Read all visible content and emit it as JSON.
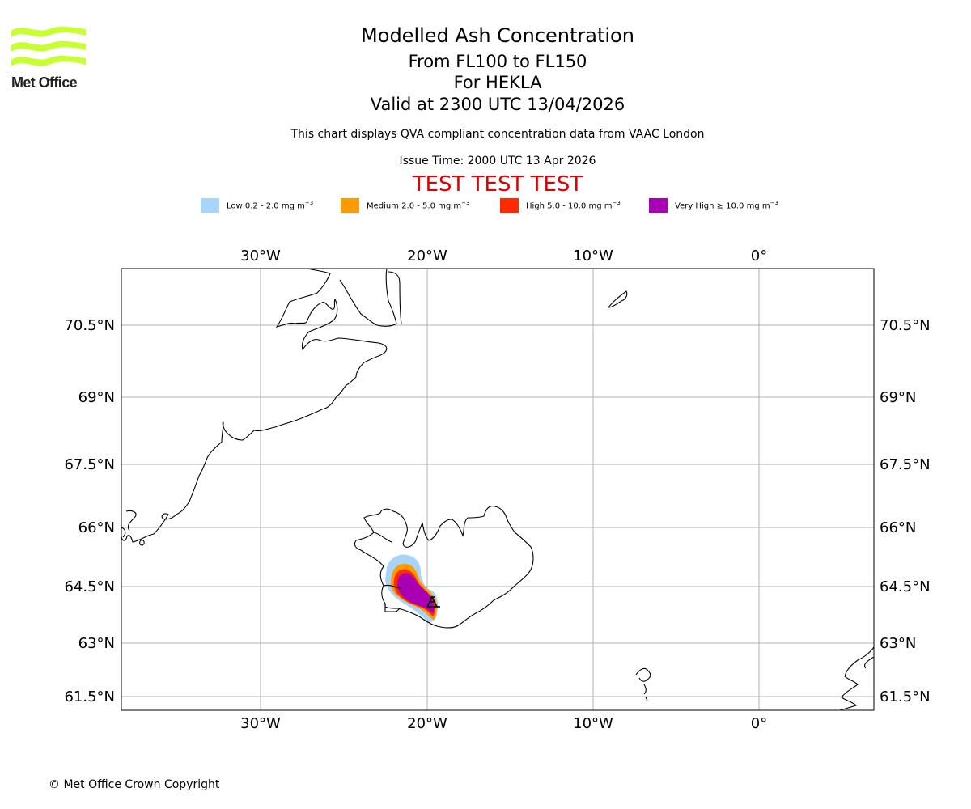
{
  "logo": {
    "text": "Met Office"
  },
  "title": {
    "line1": "Modelled Ash Concentration",
    "line2": "From FL100 to FL150",
    "line3": "For HEKLA",
    "line4": "Valid at 2300 UTC 13/04/2026"
  },
  "subtitle": "This chart displays QVA compliant concentration data from VAAC London",
  "issue_time": "Issue Time: 2000 UTC 13 Apr 2026",
  "test_banner": "TEST TEST TEST",
  "legend": [
    {
      "label": "Low 0.2 - 2.0 mg m",
      "unit_exp": "−3",
      "color": "#a6d4fa"
    },
    {
      "label": "Medium 2.0 - 5.0 mg m",
      "unit_exp": "−3",
      "color": "#ff9a00"
    },
    {
      "label": "High 5.0 - 10.0 mg m",
      "unit_exp": "−3",
      "color": "#ff2a00"
    },
    {
      "label": "Very High  ≥  10.0 mg m",
      "unit_exp": "−3",
      "color": "#a900b4"
    }
  ],
  "map": {
    "lon_labels": [
      "30°W",
      "20°W",
      "10°W",
      "0°"
    ],
    "lat_labels": [
      "70.5°N",
      "69°N",
      "67.5°N",
      "66°N",
      "64.5°N",
      "63°N",
      "61.5°N"
    ],
    "volcano": "HEKLA",
    "colors": {
      "grid": "#b0b0b0",
      "coast": "#000000"
    }
  },
  "copyright": "© Met Office Crown Copyright"
}
